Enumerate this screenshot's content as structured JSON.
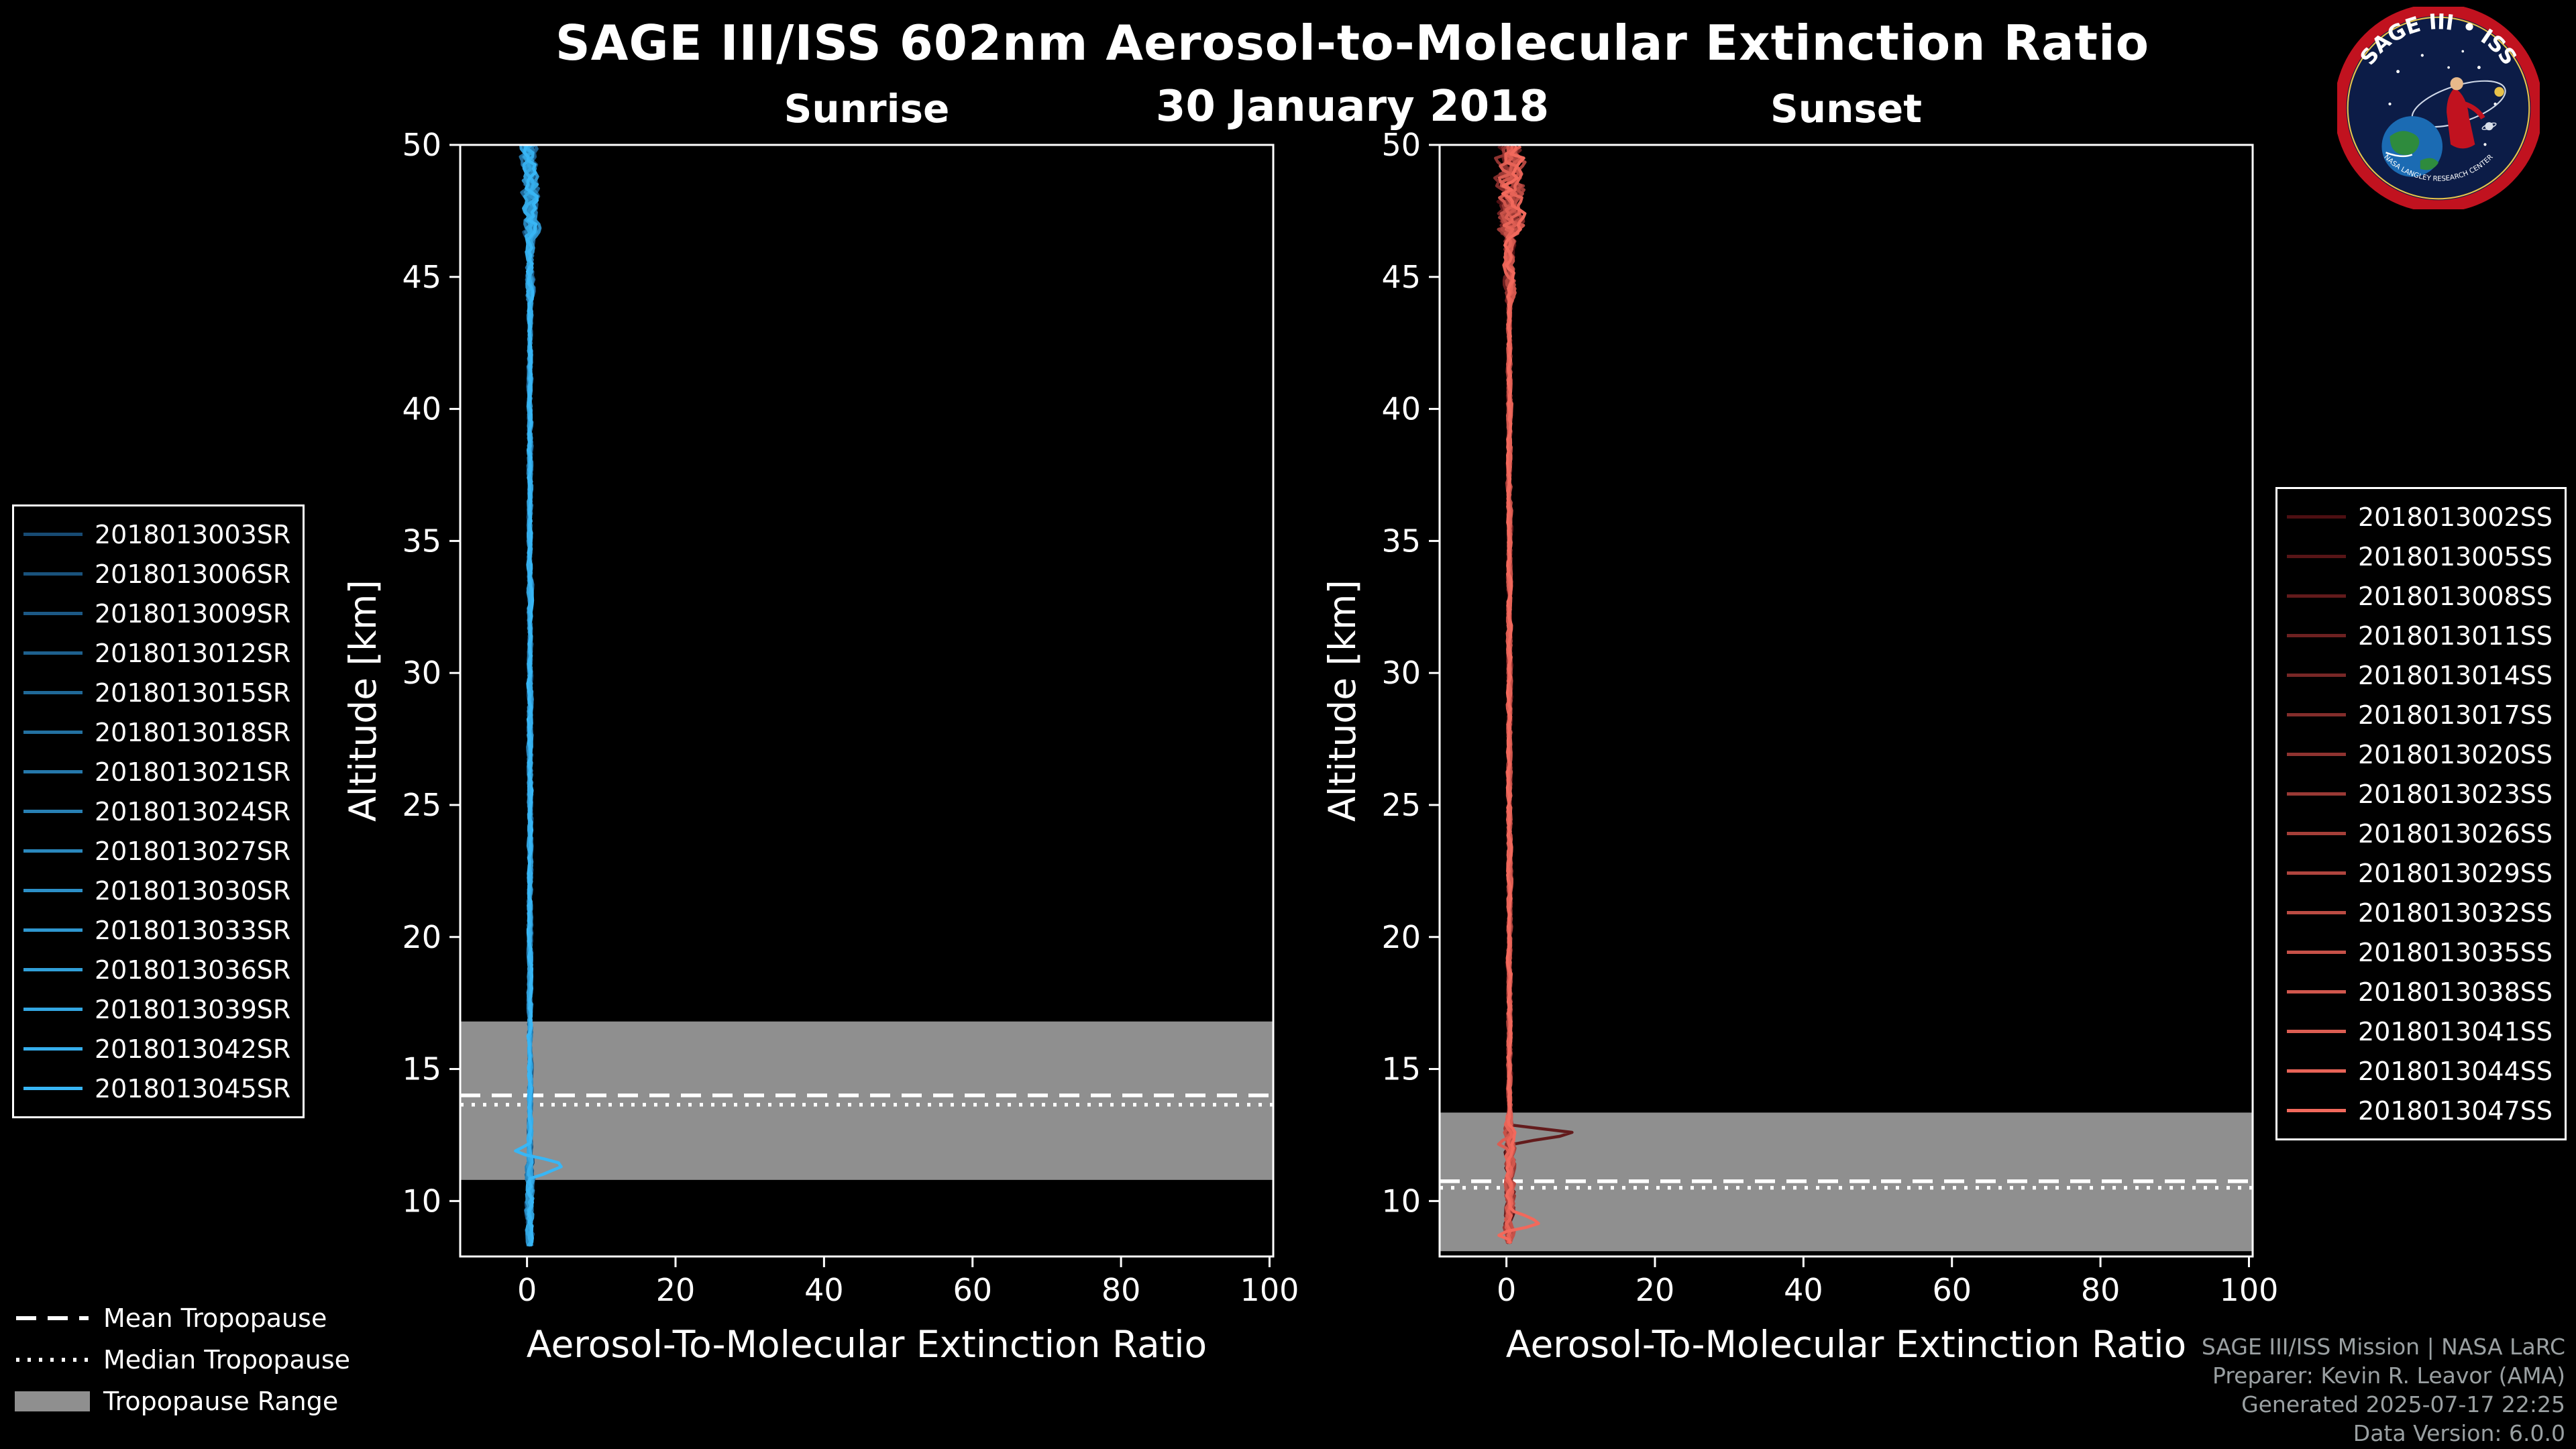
{
  "header": {
    "title": "SAGE III/ISS 602nm Aerosol-to-Molecular Extinction Ratio",
    "date": "30 January 2018"
  },
  "logo": {
    "title": "SAGE III • ISS",
    "subtitle": "NASA LANGLEY RESEARCH CENTER"
  },
  "tropopause_legend": {
    "mean_label": "Mean Tropopause",
    "median_label": "Median Tropopause",
    "range_label": "Tropopause Range"
  },
  "footer": {
    "line1": "SAGE III/ISS Mission | NASA LaRC",
    "line2": "Preparer: Kevin R. Leavor (AMA)",
    "line3": "Generated 2025-07-17 22:25",
    "line4": "Data Version: 6.0.0"
  },
  "chart_data": [
    {
      "type": "line",
      "title": "Sunrise",
      "xlabel": "Aerosol-To-Molecular Extinction Ratio",
      "ylabel": "Altitude [km]",
      "xlim": [
        -9,
        100.5
      ],
      "ylim": [
        7.9,
        50
      ],
      "xticks": [
        0,
        20,
        40,
        60,
        80,
        100
      ],
      "yticks": [
        10,
        15,
        20,
        25,
        30,
        35,
        40,
        45,
        50
      ],
      "series_names": [
        "2018013003SR",
        "2018013006SR",
        "2018013009SR",
        "2018013012SR",
        "2018013015SR",
        "2018013018SR",
        "2018013021SR",
        "2018013024SR",
        "2018013027SR",
        "2018013030SR",
        "2018013033SR",
        "2018013036SR",
        "2018013039SR",
        "2018013042SR",
        "2018013045SR"
      ],
      "color_start": "#174a73",
      "color_end": "#38b6f5",
      "alt_range": [
        8.3,
        50
      ],
      "base_value": 0.4,
      "noise_zones": [
        {
          "from": 7.9,
          "to": 11.5,
          "amp": 0.55
        },
        {
          "from": 11.5,
          "to": 44,
          "amp": 0.3
        },
        {
          "from": 44,
          "to": 46.5,
          "amp": 0.6
        },
        {
          "from": 46.5,
          "to": 50.01,
          "amp": 1.25
        }
      ],
      "features": [
        {
          "series_index": 14,
          "alt": 11.35,
          "width": 0.5,
          "amp": 4.8
        },
        {
          "series_index": 14,
          "alt": 11.85,
          "width": 0.35,
          "amp": -2.2
        }
      ],
      "tropopause": {
        "mean": 14.0,
        "median": 13.65,
        "range_low": 10.8,
        "range_high": 16.8
      }
    },
    {
      "type": "line",
      "title": "Sunset",
      "xlabel": "Aerosol-To-Molecular Extinction Ratio",
      "ylabel": "Altitude [km]",
      "xlim": [
        -9,
        100.5
      ],
      "ylim": [
        7.9,
        50
      ],
      "xticks": [
        0,
        20,
        40,
        60,
        80,
        100
      ],
      "yticks": [
        10,
        15,
        20,
        25,
        30,
        35,
        40,
        45,
        50
      ],
      "series_names": [
        "2018013002SS",
        "2018013005SS",
        "2018013008SS",
        "2018013011SS",
        "2018013014SS",
        "2018013017SS",
        "2018013020SS",
        "2018013023SS",
        "2018013026SS",
        "2018013029SS",
        "2018013032SS",
        "2018013035SS",
        "2018013038SS",
        "2018013041SS",
        "2018013044SS",
        "2018013047SS"
      ],
      "color_start": "#4d0f12",
      "color_end": "#f2695c",
      "alt_range": [
        8.4,
        50
      ],
      "base_value": 0.4,
      "noise_zones": [
        {
          "from": 7.9,
          "to": 13,
          "amp": 0.7
        },
        {
          "from": 13,
          "to": 44,
          "amp": 0.3
        },
        {
          "from": 44,
          "to": 46.5,
          "amp": 0.8
        },
        {
          "from": 46.5,
          "to": 50.01,
          "amp": 2.0
        }
      ],
      "features": [
        {
          "series_index": 2,
          "alt": 12.55,
          "width": 0.35,
          "amp": 9.5
        },
        {
          "series_index": 13,
          "alt": 12.2,
          "width": 0.25,
          "amp": -1.5
        },
        {
          "series_index": 15,
          "alt": 9.2,
          "width": 0.45,
          "amp": 4.2
        },
        {
          "series_index": 15,
          "alt": 8.8,
          "width": 0.3,
          "amp": -2.0
        }
      ],
      "tropopause": {
        "mean": 10.75,
        "median": 10.5,
        "range_low": 8.1,
        "range_high": 13.35
      }
    }
  ]
}
